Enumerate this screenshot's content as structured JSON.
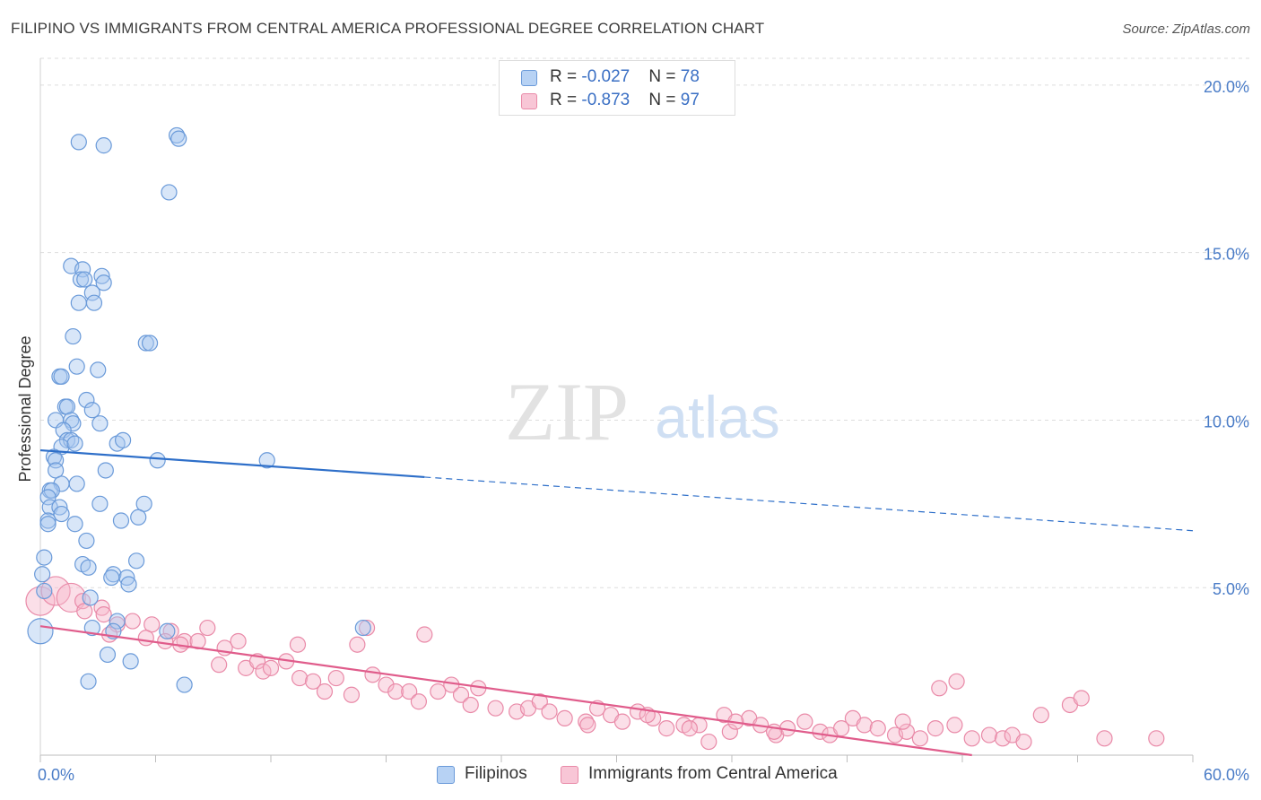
{
  "title": "FILIPINO VS IMMIGRANTS FROM CENTRAL AMERICA PROFESSIONAL DEGREE CORRELATION CHART",
  "source": "Source: ZipAtlas.com",
  "watermark": {
    "zip": "ZIP",
    "atlas": "atlas"
  },
  "legend": {
    "rows": [
      {
        "r_label": "R = ",
        "r_value": "-0.027",
        "n_label": "N = ",
        "n_value": "78"
      },
      {
        "r_label": "R = ",
        "r_value": "-0.873",
        "n_label": "N = ",
        "n_value": "97"
      }
    ]
  },
  "bottom_legend": {
    "series0": "Filipinos",
    "series1": "Immigrants from Central America"
  },
  "colors": {
    "filipino_fill": "#a9c8f0",
    "filipino_stroke": "#6a9ad9",
    "filipino_line": "#2e6fc9",
    "central_fill": "#f6b7cb",
    "central_stroke": "#e98aa8",
    "central_line": "#e05c8b",
    "tick_label": "#4a7cc7",
    "grid": "#dddddd"
  },
  "chart_data": {
    "type": "scatter",
    "title": "FILIPINO VS IMMIGRANTS FROM CENTRAL AMERICA PROFESSIONAL DEGREE CORRELATION CHART",
    "xlabel": "",
    "ylabel": "Professional Degree",
    "xlim": [
      0,
      60
    ],
    "ylim": [
      0,
      20.8
    ],
    "x_tick_labels": [
      {
        "value": 0,
        "label": "0.0%"
      },
      {
        "value": 60,
        "label": "60.0%"
      }
    ],
    "y_tick_labels": [
      {
        "value": 5,
        "label": "5.0%"
      },
      {
        "value": 10,
        "label": "10.0%"
      },
      {
        "value": 15,
        "label": "15.0%"
      },
      {
        "value": 20,
        "label": "20.0%"
      }
    ],
    "grid": true,
    "legend_position": "top-center",
    "series": [
      {
        "name": "Filipinos",
        "R": -0.027,
        "N": 78,
        "trend": {
          "solid": [
            [
              0,
              9.1
            ],
            [
              20,
              8.3
            ]
          ],
          "dashed": [
            [
              20,
              8.3
            ],
            [
              60,
              6.7
            ]
          ]
        },
        "points": [
          [
            2.0,
            18.3
          ],
          [
            3.3,
            18.2
          ],
          [
            7.1,
            18.5
          ],
          [
            7.2,
            18.4
          ],
          [
            6.7,
            16.8
          ],
          [
            1.6,
            14.6
          ],
          [
            2.2,
            14.5
          ],
          [
            2.1,
            14.2
          ],
          [
            2.3,
            14.2
          ],
          [
            3.2,
            14.3
          ],
          [
            3.3,
            14.1
          ],
          [
            2.7,
            13.8
          ],
          [
            2.0,
            13.5
          ],
          [
            2.8,
            13.5
          ],
          [
            1.7,
            12.5
          ],
          [
            5.5,
            12.3
          ],
          [
            5.7,
            12.3
          ],
          [
            1.9,
            11.6
          ],
          [
            3.0,
            11.5
          ],
          [
            1.0,
            11.3
          ],
          [
            1.1,
            11.3
          ],
          [
            2.4,
            10.6
          ],
          [
            1.3,
            10.4
          ],
          [
            1.4,
            10.4
          ],
          [
            2.7,
            10.3
          ],
          [
            0.8,
            10.0
          ],
          [
            1.6,
            10.0
          ],
          [
            1.7,
            9.9
          ],
          [
            3.1,
            9.9
          ],
          [
            1.2,
            9.7
          ],
          [
            1.4,
            9.4
          ],
          [
            1.6,
            9.4
          ],
          [
            1.1,
            9.2
          ],
          [
            1.8,
            9.3
          ],
          [
            4.0,
            9.3
          ],
          [
            4.3,
            9.4
          ],
          [
            0.7,
            8.9
          ],
          [
            0.8,
            8.8
          ],
          [
            6.1,
            8.8
          ],
          [
            11.8,
            8.8
          ],
          [
            0.8,
            8.5
          ],
          [
            3.4,
            8.5
          ],
          [
            1.1,
            8.1
          ],
          [
            1.9,
            8.1
          ],
          [
            0.5,
            7.9
          ],
          [
            0.6,
            7.9
          ],
          [
            0.4,
            7.7
          ],
          [
            3.1,
            7.5
          ],
          [
            5.4,
            7.5
          ],
          [
            0.5,
            7.4
          ],
          [
            1.0,
            7.4
          ],
          [
            1.1,
            7.2
          ],
          [
            5.1,
            7.1
          ],
          [
            0.4,
            7.0
          ],
          [
            0.4,
            6.9
          ],
          [
            1.8,
            6.9
          ],
          [
            4.2,
            7.0
          ],
          [
            2.4,
            6.4
          ],
          [
            0.2,
            5.9
          ],
          [
            2.2,
            5.7
          ],
          [
            5.0,
            5.8
          ],
          [
            2.5,
            5.6
          ],
          [
            3.8,
            5.4
          ],
          [
            3.7,
            5.3
          ],
          [
            4.5,
            5.3
          ],
          [
            4.6,
            5.1
          ],
          [
            0.1,
            5.4
          ],
          [
            0.2,
            4.9
          ],
          [
            2.6,
            4.7
          ],
          [
            4.0,
            4.0
          ],
          [
            2.7,
            3.8
          ],
          [
            6.6,
            3.7
          ],
          [
            3.8,
            3.7
          ],
          [
            16.8,
            3.8
          ],
          [
            0.0,
            3.7
          ],
          [
            3.5,
            3.0
          ],
          [
            4.7,
            2.8
          ],
          [
            2.5,
            2.2
          ],
          [
            7.5,
            2.1
          ]
        ]
      },
      {
        "name": "Immigrants from Central America",
        "R": -0.873,
        "N": 97,
        "trend": {
          "solid": [
            [
              0,
              3.85
            ],
            [
              48.5,
              0.0
            ]
          ]
        },
        "points": [
          [
            0.0,
            4.6
          ],
          [
            0.8,
            4.9
          ],
          [
            1.6,
            4.7
          ],
          [
            2.2,
            4.6
          ],
          [
            2.3,
            4.3
          ],
          [
            3.2,
            4.4
          ],
          [
            3.3,
            4.2
          ],
          [
            4.8,
            4.0
          ],
          [
            4.0,
            3.9
          ],
          [
            5.8,
            3.9
          ],
          [
            6.8,
            3.7
          ],
          [
            8.7,
            3.8
          ],
          [
            3.6,
            3.6
          ],
          [
            5.5,
            3.5
          ],
          [
            6.5,
            3.4
          ],
          [
            7.5,
            3.4
          ],
          [
            8.2,
            3.4
          ],
          [
            7.3,
            3.3
          ],
          [
            10.3,
            3.4
          ],
          [
            13.4,
            3.3
          ],
          [
            16.5,
            3.3
          ],
          [
            20.0,
            3.6
          ],
          [
            17.0,
            3.8
          ],
          [
            9.6,
            3.2
          ],
          [
            9.3,
            2.7
          ],
          [
            10.7,
            2.6
          ],
          [
            11.3,
            2.8
          ],
          [
            11.6,
            2.5
          ],
          [
            12.0,
            2.6
          ],
          [
            12.8,
            2.8
          ],
          [
            13.5,
            2.3
          ],
          [
            14.2,
            2.2
          ],
          [
            15.4,
            2.3
          ],
          [
            14.8,
            1.9
          ],
          [
            16.2,
            1.8
          ],
          [
            17.3,
            2.4
          ],
          [
            18.0,
            2.1
          ],
          [
            18.5,
            1.9
          ],
          [
            19.2,
            1.9
          ],
          [
            19.7,
            1.6
          ],
          [
            20.7,
            1.9
          ],
          [
            21.4,
            2.1
          ],
          [
            21.9,
            1.8
          ],
          [
            22.4,
            1.5
          ],
          [
            22.8,
            2.0
          ],
          [
            23.7,
            1.4
          ],
          [
            24.8,
            1.3
          ],
          [
            25.4,
            1.4
          ],
          [
            26.0,
            1.6
          ],
          [
            26.5,
            1.3
          ],
          [
            27.3,
            1.1
          ],
          [
            28.4,
            1.0
          ],
          [
            29.0,
            1.4
          ],
          [
            29.7,
            1.2
          ],
          [
            30.3,
            1.0
          ],
          [
            31.1,
            1.3
          ],
          [
            31.9,
            1.1
          ],
          [
            32.6,
            0.8
          ],
          [
            33.5,
            0.9
          ],
          [
            34.3,
            0.9
          ],
          [
            34.8,
            0.4
          ],
          [
            35.6,
            1.2
          ],
          [
            35.9,
            0.7
          ],
          [
            36.9,
            1.1
          ],
          [
            37.5,
            0.9
          ],
          [
            38.3,
            0.6
          ],
          [
            38.9,
            0.8
          ],
          [
            39.8,
            1.0
          ],
          [
            40.6,
            0.7
          ],
          [
            41.1,
            0.6
          ],
          [
            41.7,
            0.8
          ],
          [
            42.3,
            1.1
          ],
          [
            42.9,
            0.9
          ],
          [
            43.6,
            0.8
          ],
          [
            44.5,
            0.6
          ],
          [
            45.1,
            0.7
          ],
          [
            45.8,
            0.5
          ],
          [
            46.6,
            0.8
          ],
          [
            47.6,
            0.9
          ],
          [
            48.5,
            0.5
          ],
          [
            49.4,
            0.6
          ],
          [
            50.1,
            0.5
          ],
          [
            50.6,
            0.6
          ],
          [
            51.2,
            0.4
          ],
          [
            52.1,
            1.2
          ],
          [
            53.6,
            1.5
          ],
          [
            54.2,
            1.7
          ],
          [
            55.4,
            0.5
          ],
          [
            58.1,
            0.5
          ],
          [
            44.9,
            1.0
          ],
          [
            33.8,
            0.8
          ],
          [
            28.5,
            0.9
          ],
          [
            46.8,
            2.0
          ],
          [
            47.7,
            2.2
          ],
          [
            38.2,
            0.7
          ],
          [
            36.2,
            1.0
          ],
          [
            31.6,
            1.2
          ]
        ]
      }
    ]
  }
}
